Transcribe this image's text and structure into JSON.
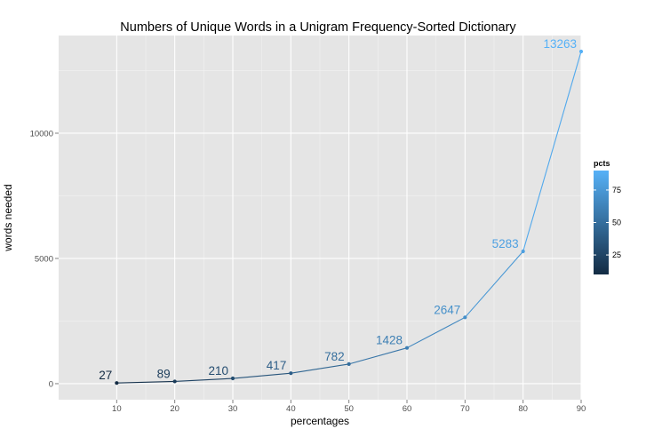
{
  "chart_data": {
    "type": "line",
    "title": "Numbers of Unique Words in a Unigram Frequency-Sorted Dictionary",
    "xlabel": "percentages",
    "ylabel": "words needed",
    "x": [
      10,
      20,
      30,
      40,
      50,
      60,
      70,
      80,
      90
    ],
    "y": [
      27,
      89,
      210,
      417,
      782,
      1428,
      2647,
      5283,
      13263
    ],
    "data_labels": [
      "27",
      "89",
      "210",
      "417",
      "782",
      "1428",
      "2647",
      "5283",
      "13263"
    ],
    "xlim": [
      0,
      90
    ],
    "ylim": [
      -640,
      13900
    ],
    "x_ticks": [
      10,
      20,
      30,
      40,
      50,
      60,
      70,
      80,
      90
    ],
    "x_tick_labels": [
      "10",
      "20",
      "30",
      "40",
      "50",
      "60",
      "70",
      "80",
      "90"
    ],
    "y_ticks": [
      0,
      5000,
      10000
    ],
    "y_tick_labels": [
      "0",
      "5000",
      "10000"
    ],
    "grid": true,
    "legend": {
      "title": "pcts",
      "placement": "right",
      "type": "colorbar",
      "range": [
        10,
        90
      ],
      "ticks": [
        25,
        50,
        75
      ],
      "tick_labels": [
        "25",
        "50",
        "75"
      ],
      "color_low": "#132b43",
      "color_high": "#56b1f7"
    },
    "colors": {
      "panel_background": "#e5e5e5",
      "gridline": "#ffffff"
    }
  }
}
